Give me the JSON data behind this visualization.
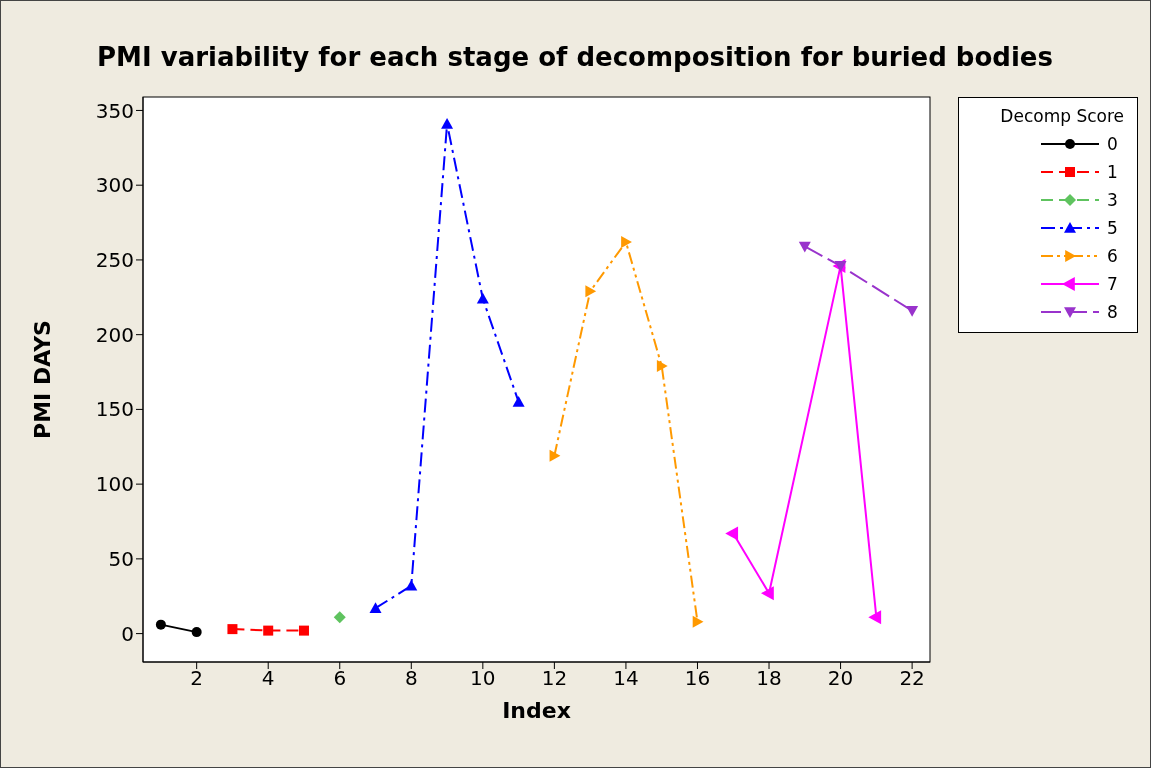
{
  "chart_data": {
    "type": "line",
    "title": "PMI variability for each stage of decomposition for buried bodies",
    "xlabel": "Index",
    "ylabel": "PMI DAYS",
    "legend_title": "Decomp Score",
    "legend": "right",
    "grid": false,
    "xlim": [
      0.5,
      22.5
    ],
    "xticks": [
      2,
      4,
      6,
      8,
      10,
      12,
      14,
      16,
      18,
      20,
      22
    ],
    "ylim": [
      -19,
      359
    ],
    "yticks": [
      0,
      50,
      100,
      150,
      200,
      250,
      300,
      350
    ],
    "series": [
      {
        "name": "0",
        "color": "#000000",
        "marker": "circle",
        "line_style": "solid",
        "x": [
          1,
          2
        ],
        "values": [
          6,
          1
        ]
      },
      {
        "name": "1",
        "color": "#ff0000",
        "marker": "square",
        "line_style": "dashed",
        "x": [
          3,
          4,
          5
        ],
        "values": [
          3,
          2,
          2
        ]
      },
      {
        "name": "3",
        "color": "#5fc35f",
        "marker": "diamond",
        "line_style": "dashed",
        "x": [
          6
        ],
        "values": [
          11
        ]
      },
      {
        "name": "5",
        "color": "#0000ff",
        "marker": "triangle",
        "line_style": "dashdot",
        "x": [
          7,
          8,
          9,
          10,
          11
        ],
        "values": [
          17,
          32,
          341,
          224,
          155
        ]
      },
      {
        "name": "6",
        "color": "#ff9900",
        "marker": "triangle-right",
        "line_style": "dashdotdot",
        "x": [
          12,
          13,
          14,
          15,
          16
        ],
        "values": [
          119,
          229,
          262,
          179,
          8
        ]
      },
      {
        "name": "7",
        "color": "#ff00ff",
        "marker": "triangle-left",
        "line_style": "solid",
        "x": [
          17,
          18,
          20,
          21
        ],
        "values": [
          67,
          27,
          246,
          11
        ]
      },
      {
        "name": "8",
        "color": "#9933cc",
        "marker": "triangle-down",
        "line_style": "longdash",
        "x": [
          19,
          20,
          22
        ],
        "values": [
          259,
          246,
          216
        ]
      }
    ]
  }
}
